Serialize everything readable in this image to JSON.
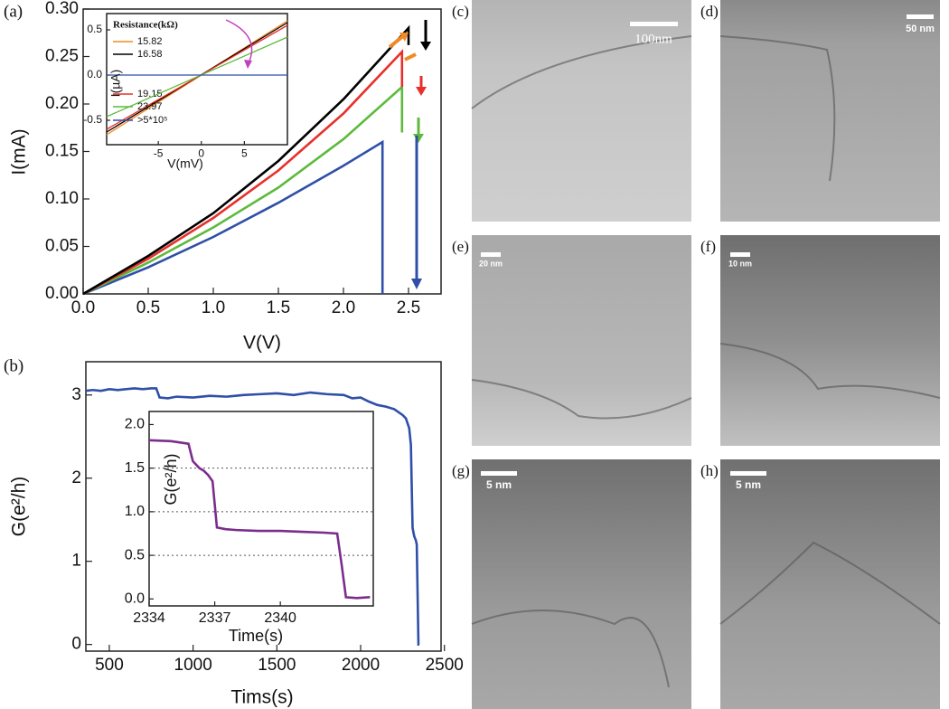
{
  "chart_data": [
    {
      "type": "line",
      "panel_label": "(a)",
      "x_label": "V(V)",
      "y_label": "I(mA)",
      "xlim": [
        0,
        2.75
      ],
      "ylim": [
        0,
        0.3
      ],
      "xticks": [
        {
          "value": 0,
          "label": "0.0"
        },
        {
          "value": 0.5,
          "label": "0.5"
        },
        {
          "value": 1,
          "label": "1.0"
        },
        {
          "value": 1.5,
          "label": "1.5"
        },
        {
          "value": 2,
          "label": "2.0"
        },
        {
          "value": 2.5,
          "label": "2.5"
        }
      ],
      "yticks": [
        {
          "value": 0,
          "label": "0.00"
        },
        {
          "value": 0.05,
          "label": "0.05"
        },
        {
          "value": 0.1,
          "label": "0.10"
        },
        {
          "value": 0.15,
          "label": "0.15"
        },
        {
          "value": 0.2,
          "label": "0.20"
        },
        {
          "value": 0.25,
          "label": "0.25"
        },
        {
          "value": 0.3,
          "label": "0.30"
        }
      ],
      "series": [
        {
          "color": "#2f4fa8",
          "x": [
            0,
            0.5,
            1,
            1.5,
            2,
            2.3,
            2.3
          ],
          "values": [
            0,
            0.028,
            0.06,
            0.096,
            0.135,
            0.16,
            0
          ]
        },
        {
          "color": "#5dba3c",
          "x": [
            0,
            0.5,
            1,
            1.5,
            2,
            2.45,
            2.45
          ],
          "values": [
            0,
            0.033,
            0.07,
            0.112,
            0.163,
            0.218,
            0.17
          ]
        },
        {
          "color": "#e8302a",
          "x": [
            0,
            0.5,
            1,
            1.5,
            2,
            2.45,
            2.45
          ],
          "values": [
            0,
            0.037,
            0.08,
            0.13,
            0.19,
            0.255,
            0.218
          ]
        },
        {
          "color": "#000000",
          "x": [
            0,
            0.5,
            1,
            1.5,
            2,
            2.5,
            2.5
          ],
          "values": [
            0,
            0.04,
            0.085,
            0.14,
            0.205,
            0.28,
            0.262
          ]
        }
      ]
    },
    {
      "type": "line",
      "x_label": "V(mV)",
      "y_label": "I(µA)",
      "legend_title": "Resistance(kΩ)",
      "xlim": [
        -11,
        10
      ],
      "ylim": [
        -0.77,
        0.68
      ],
      "xticks": [
        -5,
        0,
        5
      ],
      "yticks": [
        -0.5,
        {
          "value": 0,
          "label": "0.0"
        },
        0.5
      ],
      "series": [
        {
          "name": "15.82",
          "color": "#f08a24",
          "x": [
            -11,
            10
          ],
          "values": [
            -0.66,
            0.6
          ]
        },
        {
          "name": "16.58",
          "color": "#000000",
          "x": [
            -11,
            10
          ],
          "values": [
            -0.63,
            0.58
          ]
        },
        {
          "name": "19.15",
          "color": "#e8302a",
          "x": [
            -11,
            10
          ],
          "values": [
            -0.6,
            0.55
          ]
        },
        {
          "name": "23.97",
          "color": "#5dba3c",
          "x": [
            -11,
            10
          ],
          "values": [
            -0.46,
            0.42
          ]
        },
        {
          "name": ">5*10⁵",
          "color": "#2f4fa8",
          "x": [
            -11,
            10
          ],
          "values": [
            0,
            0
          ]
        }
      ]
    },
    {
      "type": "line",
      "panel_label": "(b)",
      "x_label": "Tims(s)",
      "y_label": "G(e²/h)",
      "xlim": [
        360,
        2480
      ],
      "ylim": [
        -0.08,
        3.4
      ],
      "xticks": [
        500,
        1000,
        1500,
        2000,
        2500
      ],
      "yticks": [
        0,
        1,
        2,
        3
      ],
      "series": [
        {
          "color": "#2f4fa8",
          "x": [
            360,
            400,
            450,
            500,
            550,
            600,
            650,
            700,
            750,
            780,
            800,
            850,
            900,
            1000,
            1100,
            1200,
            1300,
            1400,
            1500,
            1600,
            1700,
            1800,
            1900,
            1950,
            2000,
            2050,
            2100,
            2150,
            2200,
            2250,
            2270,
            2290,
            2300,
            2310,
            2320,
            2330,
            2335,
            2340,
            2345,
            2350
          ],
          "values": [
            3.05,
            3.06,
            3.05,
            3.07,
            3.06,
            3.07,
            3.08,
            3.07,
            3.08,
            3.08,
            2.97,
            2.96,
            2.98,
            2.97,
            2.99,
            2.98,
            3.0,
            3.01,
            3.02,
            3.0,
            3.03,
            3.01,
            3.0,
            2.96,
            2.97,
            2.92,
            2.88,
            2.86,
            2.83,
            2.76,
            2.72,
            2.6,
            2.4,
            1.4,
            1.3,
            1.25,
            1.2,
            0.6,
            0.0,
            0.0
          ]
        }
      ]
    },
    {
      "type": "line",
      "x_label": "Time(s)",
      "y_label": "G(e²/h)",
      "xlim": [
        2334,
        2344.25
      ],
      "ylim": [
        -0.08,
        2.15
      ],
      "xticks": [
        2334,
        2337,
        2340
      ],
      "yticks": [
        {
          "value": 0,
          "label": "0.0"
        },
        0.5,
        {
          "value": 1,
          "label": "1.0"
        },
        1.5,
        {
          "value": 2,
          "label": "2.0"
        }
      ],
      "grid_y": [
        0.5,
        1,
        1.5
      ],
      "series": [
        {
          "color": "#7b2d8e",
          "x": [
            2334,
            2335,
            2335.8,
            2336,
            2336.3,
            2336.5,
            2336.7,
            2336.9,
            2337.1,
            2337.5,
            2338,
            2339,
            2340,
            2341,
            2342,
            2342.6,
            2342.8,
            2343,
            2343.5,
            2344.1
          ],
          "values": [
            1.82,
            1.81,
            1.78,
            1.58,
            1.5,
            1.47,
            1.42,
            1.35,
            0.82,
            0.8,
            0.79,
            0.78,
            0.78,
            0.77,
            0.76,
            0.75,
            0.4,
            0.02,
            0.01,
            0.02
          ]
        }
      ]
    }
  ],
  "micrographs": [
    {
      "label": "(c)",
      "scale_bar": "100nm"
    },
    {
      "label": "(d)",
      "scale_bar": "50 nm"
    },
    {
      "label": "(e)",
      "scale_bar": "20 nm"
    },
    {
      "label": "(f)",
      "scale_bar": "10 nm"
    },
    {
      "label": "(g)",
      "scale_bar": "5 nm"
    },
    {
      "label": "(h)",
      "scale_bar": "5 nm"
    }
  ]
}
